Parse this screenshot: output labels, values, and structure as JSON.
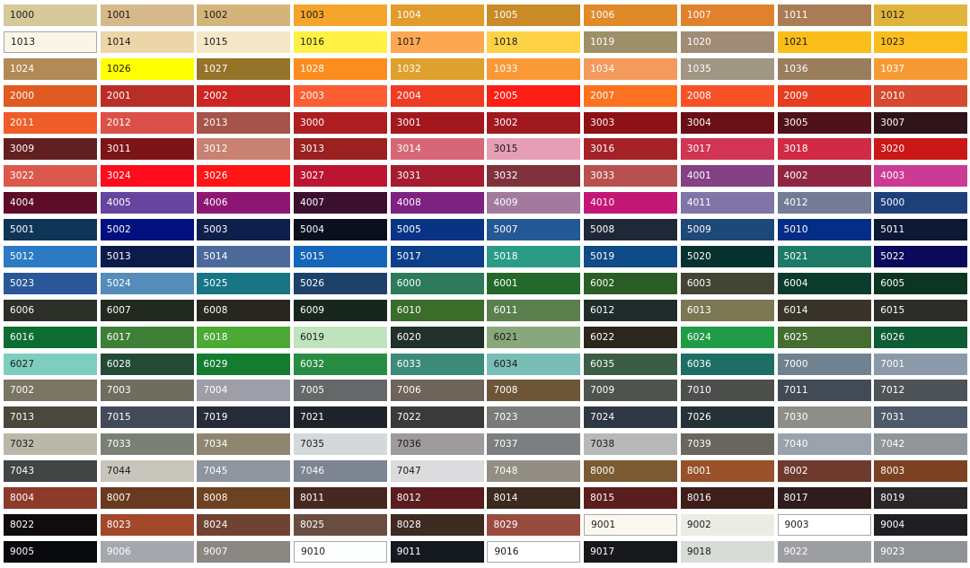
{
  "text_colors": {
    "d": "#1a1a1a",
    "l": "#ffffff"
  },
  "border_color": "#a8a8a8",
  "rows": [
    [
      [
        "1000",
        "#d6c99a",
        "d",
        0
      ],
      [
        "1001",
        "#d6b98a",
        "d",
        0
      ],
      [
        "1002",
        "#d5b47a",
        "d",
        0
      ],
      [
        "1003",
        "#f6a42b",
        "d",
        0
      ],
      [
        "1004",
        "#e19c2b",
        "l",
        0
      ],
      [
        "1005",
        "#c98a27",
        "l",
        0
      ],
      [
        "1006",
        "#e08a2a",
        "l",
        0
      ],
      [
        "1007",
        "#e0822c",
        "l",
        0
      ],
      [
        "1011",
        "#a97c55",
        "l",
        0
      ],
      [
        "1012",
        "#e0b43a",
        "d",
        0
      ]
    ],
    [
      [
        "1013",
        "#fbf5e6",
        "d",
        1
      ],
      [
        "1014",
        "#ecd5a8",
        "d",
        0
      ],
      [
        "1015",
        "#f5e6c8",
        "d",
        0
      ],
      [
        "1016",
        "#fff144",
        "d",
        0
      ],
      [
        "1017",
        "#fca852",
        "d",
        0
      ],
      [
        "1018",
        "#fdd247",
        "d",
        0
      ],
      [
        "1019",
        "#9d9068",
        "l",
        0
      ],
      [
        "1020",
        "#a08c76",
        "l",
        0
      ],
      [
        "1021",
        "#fbbd1a",
        "d",
        0
      ],
      [
        "1023",
        "#fbbd1e",
        "d",
        0
      ]
    ],
    [
      [
        "1024",
        "#b28a55",
        "l",
        0
      ],
      [
        "1026",
        "#ffff00",
        "d",
        0
      ],
      [
        "1027",
        "#957328",
        "l",
        0
      ],
      [
        "1028",
        "#fb8c1e",
        "l",
        0
      ],
      [
        "1032",
        "#e0a02d",
        "l",
        0
      ],
      [
        "1033",
        "#fb9937",
        "l",
        0
      ],
      [
        "1034",
        "#f39a5c",
        "l",
        0
      ],
      [
        "1035",
        "#a09683",
        "l",
        0
      ],
      [
        "1036",
        "#9a7e5b",
        "l",
        0
      ],
      [
        "1037",
        "#f79a35",
        "l",
        0
      ]
    ],
    [
      [
        "2000",
        "#e05a21",
        "l",
        0
      ],
      [
        "2001",
        "#b82d25",
        "l",
        0
      ],
      [
        "2002",
        "#cc2522",
        "l",
        0
      ],
      [
        "2003",
        "#fc5d33",
        "l",
        0
      ],
      [
        "2004",
        "#ef3c23",
        "l",
        0
      ],
      [
        "2005",
        "#fd1e16",
        "l",
        0
      ],
      [
        "2007",
        "#fd7220",
        "l",
        0
      ],
      [
        "2008",
        "#f85128",
        "l",
        0
      ],
      [
        "2009",
        "#e73c1f",
        "l",
        0
      ],
      [
        "2010",
        "#d74830",
        "l",
        0
      ]
    ],
    [
      [
        "2011",
        "#ef5c27",
        "l",
        0
      ],
      [
        "2012",
        "#db5048",
        "l",
        0
      ],
      [
        "2013",
        "#a6544a",
        "l",
        0
      ],
      [
        "3000",
        "#ae1e21",
        "l",
        0
      ],
      [
        "3001",
        "#a3181d",
        "l",
        0
      ],
      [
        "3002",
        "#a0191e",
        "l",
        0
      ],
      [
        "3003",
        "#8d1116",
        "l",
        0
      ],
      [
        "3004",
        "#6a0f15",
        "l",
        0
      ],
      [
        "3005",
        "#4f121a",
        "l",
        0
      ],
      [
        "3007",
        "#2f1319",
        "l",
        0
      ]
    ],
    [
      [
        "3009",
        "#632020",
        "l",
        0
      ],
      [
        "3011",
        "#7c1418",
        "l",
        0
      ],
      [
        "3012",
        "#c98172",
        "l",
        0
      ],
      [
        "3013",
        "#9a2120",
        "l",
        0
      ],
      [
        "3014",
        "#d76777",
        "l",
        0
      ],
      [
        "3015",
        "#e69eb5",
        "d",
        0
      ],
      [
        "3016",
        "#a52226",
        "l",
        0
      ],
      [
        "3017",
        "#d23453",
        "l",
        0
      ],
      [
        "3018",
        "#d22a45",
        "l",
        0
      ],
      [
        "3020",
        "#cc1717",
        "l",
        0
      ]
    ],
    [
      [
        "3022",
        "#dc584c",
        "l",
        0
      ],
      [
        "3024",
        "#fd0c1b",
        "l",
        0
      ],
      [
        "3026",
        "#fe1616",
        "l",
        0
      ],
      [
        "3027",
        "#bb1532",
        "l",
        0
      ],
      [
        "3031",
        "#a51c2f",
        "l",
        0
      ],
      [
        "3032",
        "#7f323c",
        "l",
        0
      ],
      [
        "3033",
        "#b8504f",
        "l",
        0
      ],
      [
        "4001",
        "#844183",
        "l",
        0
      ],
      [
        "4002",
        "#902542",
        "l",
        0
      ],
      [
        "4003",
        "#cc3b93",
        "l",
        0
      ]
    ],
    [
      [
        "4004",
        "#5e0c27",
        "l",
        0
      ],
      [
        "4005",
        "#6744a0",
        "l",
        0
      ],
      [
        "4006",
        "#8d1673",
        "l",
        0
      ],
      [
        "4007",
        "#3c1030",
        "l",
        0
      ],
      [
        "4008",
        "#7e2281",
        "l",
        0
      ],
      [
        "4009",
        "#a27a9e",
        "l",
        0
      ],
      [
        "4010",
        "#c41775",
        "l",
        0
      ],
      [
        "4011",
        "#8074a8",
        "l",
        0
      ],
      [
        "4012",
        "#737c96",
        "l",
        0
      ],
      [
        "5000",
        "#1e3f78",
        "l",
        0
      ]
    ],
    [
      [
        "5001",
        "#0e3556",
        "l",
        0
      ],
      [
        "5002",
        "#00107e",
        "l",
        0
      ],
      [
        "5003",
        "#0e1f4c",
        "l",
        0
      ],
      [
        "5004",
        "#0a0f1e",
        "l",
        0
      ],
      [
        "5005",
        "#093485",
        "l",
        0
      ],
      [
        "5007",
        "#245896",
        "l",
        0
      ],
      [
        "5008",
        "#1f2836",
        "l",
        0
      ],
      [
        "5009",
        "#1e4877",
        "l",
        0
      ],
      [
        "5010",
        "#032d86",
        "l",
        0
      ],
      [
        "5011",
        "#0c1834",
        "l",
        0
      ]
    ],
    [
      [
        "5012",
        "#2b7ac4",
        "l",
        0
      ],
      [
        "5013",
        "#0d1b4b",
        "l",
        0
      ],
      [
        "5014",
        "#4b6a9a",
        "l",
        0
      ],
      [
        "5015",
        "#1566b9",
        "l",
        0
      ],
      [
        "5017",
        "#0b4088",
        "l",
        0
      ],
      [
        "5018",
        "#2b9b88",
        "l",
        0
      ],
      [
        "5019",
        "#0e4b87",
        "l",
        0
      ],
      [
        "5020",
        "#05322f",
        "l",
        0
      ],
      [
        "5021",
        "#1c7a67",
        "l",
        0
      ],
      [
        "5022",
        "#090a5a",
        "l",
        0
      ]
    ],
    [
      [
        "5023",
        "#2a5798",
        "l",
        0
      ],
      [
        "5024",
        "#558cba",
        "l",
        0
      ],
      [
        "5025",
        "#177586",
        "l",
        0
      ],
      [
        "5026",
        "#1c426a",
        "l",
        0
      ],
      [
        "6000",
        "#2d7b5a",
        "l",
        0
      ],
      [
        "6001",
        "#25682c",
        "l",
        0
      ],
      [
        "6002",
        "#2a5e26",
        "l",
        0
      ],
      [
        "6003",
        "#434534",
        "l",
        0
      ],
      [
        "6004",
        "#0b3b2d",
        "l",
        0
      ],
      [
        "6005",
        "#0d3622",
        "l",
        0
      ]
    ],
    [
      [
        "6006",
        "#2c2e28",
        "l",
        0
      ],
      [
        "6007",
        "#222a1f",
        "l",
        0
      ],
      [
        "6008",
        "#27261f",
        "l",
        0
      ],
      [
        "6009",
        "#18271e",
        "l",
        0
      ],
      [
        "6010",
        "#3a6c2a",
        "l",
        0
      ],
      [
        "6011",
        "#5b804e",
        "l",
        0
      ],
      [
        "6012",
        "#1f2c2b",
        "l",
        0
      ],
      [
        "6013",
        "#7b7752",
        "l",
        0
      ],
      [
        "6014",
        "#393429",
        "l",
        0
      ],
      [
        "6015",
        "#2c2d28",
        "l",
        0
      ]
    ],
    [
      [
        "6016",
        "#0d6c2f",
        "l",
        0
      ],
      [
        "6017",
        "#3e7f37",
        "l",
        0
      ],
      [
        "6018",
        "#4ca934",
        "l",
        0
      ],
      [
        "6019",
        "#bfe3bd",
        "d",
        0
      ],
      [
        "6020",
        "#213029",
        "l",
        0
      ],
      [
        "6021",
        "#88a77b",
        "d",
        0
      ],
      [
        "6022",
        "#2c271c",
        "l",
        0
      ],
      [
        "6024",
        "#209c47",
        "l",
        0
      ],
      [
        "6025",
        "#456c31",
        "l",
        0
      ],
      [
        "6026",
        "#0c5c34",
        "l",
        0
      ]
    ],
    [
      [
        "6027",
        "#7ecec0",
        "d",
        0
      ],
      [
        "6028",
        "#224a35",
        "l",
        0
      ],
      [
        "6029",
        "#137c2f",
        "l",
        0
      ],
      [
        "6032",
        "#288c43",
        "l",
        0
      ],
      [
        "6033",
        "#3c8a79",
        "l",
        0
      ],
      [
        "6034",
        "#79bdb7",
        "d",
        0
      ],
      [
        "6035",
        "#3b5d44",
        "l",
        0
      ],
      [
        "6036",
        "#1d6e65",
        "l",
        0
      ],
      [
        "7000",
        "#708290",
        "l",
        0
      ],
      [
        "7001",
        "#8b9aa8",
        "l",
        0
      ]
    ],
    [
      [
        "7002",
        "#7a7663",
        "l",
        0
      ],
      [
        "7003",
        "#6e6d5e",
        "l",
        0
      ],
      [
        "7004",
        "#9d9ea7",
        "l",
        0
      ],
      [
        "7005",
        "#646868",
        "l",
        0
      ],
      [
        "7006",
        "#6f645a",
        "l",
        0
      ],
      [
        "7008",
        "#6d5638",
        "l",
        0
      ],
      [
        "7009",
        "#4f534d",
        "l",
        0
      ],
      [
        "7010",
        "#4c4f4c",
        "l",
        0
      ],
      [
        "7011",
        "#414a55",
        "l",
        0
      ],
      [
        "7012",
        "#4d5357",
        "l",
        0
      ]
    ],
    [
      [
        "7013",
        "#4b473d",
        "l",
        0
      ],
      [
        "7015",
        "#424a5a",
        "l",
        0
      ],
      [
        "7019",
        "#252b38",
        "l",
        0
      ],
      [
        "7021",
        "#1f242b",
        "l",
        0
      ],
      [
        "7022",
        "#393a3a",
        "l",
        0
      ],
      [
        "7023",
        "#7a7b78",
        "l",
        0
      ],
      [
        "7024",
        "#303744",
        "l",
        0
      ],
      [
        "7026",
        "#243235",
        "l",
        0
      ],
      [
        "7030",
        "#8e8d87",
        "l",
        0
      ],
      [
        "7031",
        "#4c5a69",
        "l",
        0
      ]
    ],
    [
      [
        "7032",
        "#bbb8a9",
        "d",
        0
      ],
      [
        "7033",
        "#7a8174",
        "l",
        0
      ],
      [
        "7034",
        "#8f8670",
        "l",
        0
      ],
      [
        "7035",
        "#d5d8da",
        "d",
        0
      ],
      [
        "7036",
        "#9f9a9e",
        "d",
        0
      ],
      [
        "7037",
        "#7c7e80",
        "l",
        0
      ],
      [
        "7038",
        "#b7b9b8",
        "d",
        0
      ],
      [
        "7039",
        "#68665f",
        "l",
        0
      ],
      [
        "7040",
        "#9aa2ac",
        "l",
        0
      ],
      [
        "7042",
        "#8f9598",
        "l",
        0
      ]
    ],
    [
      [
        "7043",
        "#414645",
        "l",
        0
      ],
      [
        "7044",
        "#c8c6bc",
        "d",
        0
      ],
      [
        "7045",
        "#8f959e",
        "l",
        0
      ],
      [
        "7046",
        "#7c8591",
        "l",
        0
      ],
      [
        "7047",
        "#dcdcdf",
        "d",
        0
      ],
      [
        "7048",
        "#938e84",
        "l",
        0
      ],
      [
        "8000",
        "#7c5a32",
        "l",
        0
      ],
      [
        "8001",
        "#985128",
        "l",
        0
      ],
      [
        "8002",
        "#6e3a2e",
        "l",
        0
      ],
      [
        "8003",
        "#7c4123",
        "l",
        0
      ]
    ],
    [
      [
        "8004",
        "#8d3a2b",
        "l",
        0
      ],
      [
        "8007",
        "#693a20",
        "l",
        0
      ],
      [
        "8008",
        "#6d4221",
        "l",
        0
      ],
      [
        "8011",
        "#462820",
        "l",
        0
      ],
      [
        "8012",
        "#5c1c1f",
        "l",
        0
      ],
      [
        "8014",
        "#3b2a1d",
        "l",
        0
      ],
      [
        "8015",
        "#5a1e1c",
        "l",
        0
      ],
      [
        "8016",
        "#3d1e1a",
        "l",
        0
      ],
      [
        "8017",
        "#2f1c1c",
        "l",
        0
      ],
      [
        "8019",
        "#2b2729",
        "l",
        0
      ]
    ],
    [
      [
        "8022",
        "#0f0b0e",
        "l",
        0
      ],
      [
        "8023",
        "#a3482a",
        "l",
        0
      ],
      [
        "8024",
        "#704330",
        "l",
        0
      ],
      [
        "8025",
        "#6a4d41",
        "l",
        0
      ],
      [
        "8028",
        "#3e2b21",
        "l",
        0
      ],
      [
        "8029",
        "#9a4b40",
        "l",
        0
      ],
      [
        "9001",
        "#fbf9ef",
        "d",
        1
      ],
      [
        "9002",
        "#ecebe4",
        "d",
        0
      ],
      [
        "9003",
        "#ffffff",
        "d",
        1
      ],
      [
        "9004",
        "#1f1f23",
        "l",
        0
      ]
    ],
    [
      [
        "9005",
        "#08090c",
        "l",
        0
      ],
      [
        "9006",
        "#a5a8ae",
        "l",
        0
      ],
      [
        "9007",
        "#8a8681",
        "l",
        0
      ],
      [
        "9010",
        "#fdfefe",
        "d",
        1
      ],
      [
        "9011",
        "#141920",
        "l",
        0
      ],
      [
        "9016",
        "#ffffff",
        "d",
        1
      ],
      [
        "9017",
        "#16181c",
        "l",
        0
      ],
      [
        "9018",
        "#d7dcd7",
        "d",
        0
      ],
      [
        "9022",
        "#9c9ea1",
        "l",
        0
      ],
      [
        "9023",
        "#909396",
        "l",
        0
      ]
    ]
  ]
}
